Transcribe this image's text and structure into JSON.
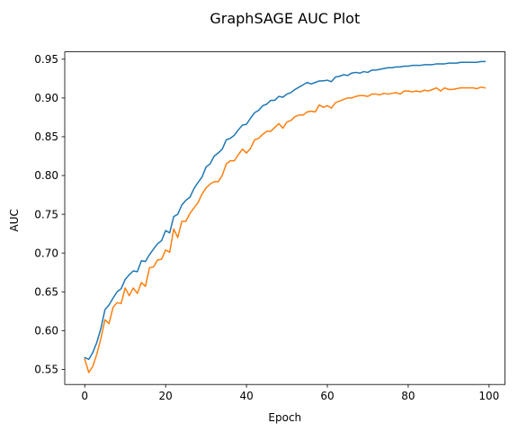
{
  "chart_data": {
    "type": "line",
    "title": "GraphSAGE AUC Plot",
    "xlabel": "Epoch",
    "ylabel": "AUC",
    "xlim": [
      -4.95,
      103.95
    ],
    "ylim": [
      0.5305,
      0.9595
    ],
    "xticks": [
      0,
      20,
      40,
      60,
      80,
      100
    ],
    "yticks": [
      0.55,
      0.6,
      0.65,
      0.7,
      0.75,
      0.8,
      0.85,
      0.9,
      0.95
    ],
    "ytick_labels": [
      "0.55",
      "0.60",
      "0.65",
      "0.70",
      "0.75",
      "0.80",
      "0.85",
      "0.90",
      "0.95"
    ],
    "grid": false,
    "legend": false,
    "x": [
      0,
      1,
      2,
      3,
      4,
      5,
      6,
      7,
      8,
      9,
      10,
      11,
      12,
      13,
      14,
      15,
      16,
      17,
      18,
      19,
      20,
      21,
      22,
      23,
      24,
      25,
      26,
      27,
      28,
      29,
      30,
      31,
      32,
      33,
      34,
      35,
      36,
      37,
      38,
      39,
      40,
      41,
      42,
      43,
      44,
      45,
      46,
      47,
      48,
      49,
      50,
      51,
      52,
      53,
      54,
      55,
      56,
      57,
      58,
      59,
      60,
      61,
      62,
      63,
      64,
      65,
      66,
      67,
      68,
      69,
      70,
      71,
      72,
      73,
      74,
      75,
      76,
      77,
      78,
      79,
      80,
      81,
      82,
      83,
      84,
      85,
      86,
      87,
      88,
      89,
      90,
      91,
      92,
      93,
      94,
      95,
      96,
      97,
      98,
      99
    ],
    "series": [
      {
        "color": "#1f77b4",
        "values": [
          0.565,
          0.563,
          0.572,
          0.585,
          0.603,
          0.627,
          0.633,
          0.642,
          0.65,
          0.654,
          0.666,
          0.672,
          0.677,
          0.676,
          0.69,
          0.689,
          0.698,
          0.705,
          0.712,
          0.716,
          0.729,
          0.726,
          0.747,
          0.75,
          0.762,
          0.768,
          0.772,
          0.783,
          0.791,
          0.798,
          0.811,
          0.815,
          0.825,
          0.829,
          0.834,
          0.846,
          0.848,
          0.852,
          0.859,
          0.865,
          0.866,
          0.874,
          0.881,
          0.884,
          0.89,
          0.892,
          0.897,
          0.897,
          0.902,
          0.901,
          0.905,
          0.907,
          0.911,
          0.914,
          0.917,
          0.92,
          0.918,
          0.92,
          0.922,
          0.922,
          0.923,
          0.921,
          0.927,
          0.928,
          0.93,
          0.929,
          0.932,
          0.933,
          0.932,
          0.934,
          0.933,
          0.936,
          0.936,
          0.937,
          0.938,
          0.939,
          0.939,
          0.94,
          0.94,
          0.941,
          0.941,
          0.942,
          0.942,
          0.942,
          0.943,
          0.943,
          0.943,
          0.944,
          0.944,
          0.944,
          0.945,
          0.945,
          0.945,
          0.946,
          0.946,
          0.946,
          0.946,
          0.946,
          0.947,
          0.947
        ]
      },
      {
        "color": "#ff7f0e",
        "values": [
          0.563,
          0.546,
          0.554,
          0.57,
          0.59,
          0.614,
          0.609,
          0.63,
          0.636,
          0.635,
          0.655,
          0.645,
          0.655,
          0.648,
          0.662,
          0.657,
          0.681,
          0.682,
          0.691,
          0.692,
          0.704,
          0.701,
          0.731,
          0.72,
          0.741,
          0.741,
          0.751,
          0.758,
          0.765,
          0.776,
          0.784,
          0.789,
          0.792,
          0.792,
          0.8,
          0.815,
          0.819,
          0.819,
          0.827,
          0.834,
          0.829,
          0.835,
          0.846,
          0.848,
          0.853,
          0.857,
          0.857,
          0.862,
          0.867,
          0.861,
          0.869,
          0.871,
          0.876,
          0.878,
          0.878,
          0.882,
          0.883,
          0.882,
          0.891,
          0.888,
          0.89,
          0.887,
          0.894,
          0.896,
          0.898,
          0.9,
          0.9,
          0.902,
          0.903,
          0.903,
          0.902,
          0.905,
          0.905,
          0.904,
          0.906,
          0.905,
          0.906,
          0.907,
          0.905,
          0.909,
          0.909,
          0.908,
          0.909,
          0.908,
          0.91,
          0.909,
          0.911,
          0.913,
          0.909,
          0.913,
          0.911,
          0.911,
          0.912,
          0.913,
          0.913,
          0.913,
          0.913,
          0.912,
          0.914,
          0.913
        ]
      }
    ]
  }
}
